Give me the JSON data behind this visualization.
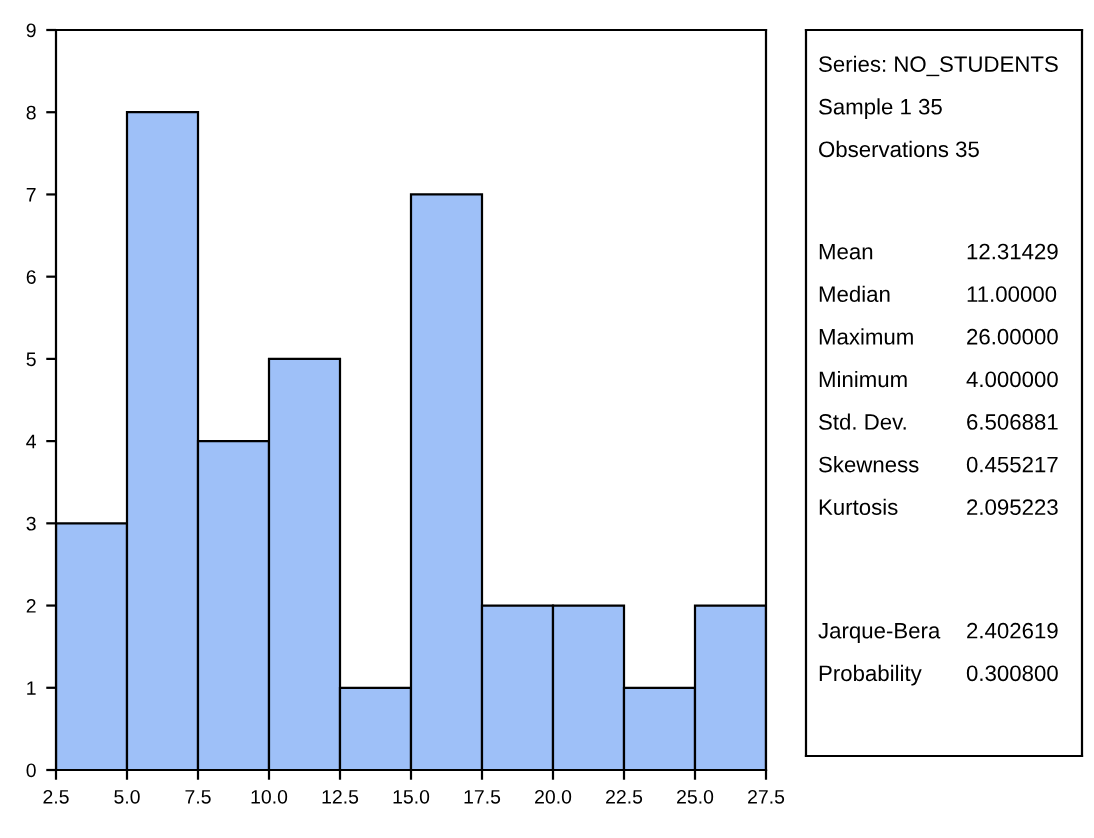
{
  "chart_data": [
    {
      "type": "histogram",
      "bins": [
        2.5,
        5.0,
        7.5,
        10.0,
        12.5,
        15.0,
        17.5,
        20.0,
        22.5,
        25.0,
        27.5
      ],
      "values": [
        3,
        8,
        4,
        5,
        1,
        7,
        2,
        2,
        1,
        2
      ],
      "color": "#9ec0f8",
      "xlim": [
        2.5,
        27.5
      ],
      "xticks": [
        2.5,
        {
          "value": 5.0,
          "label": "5.0"
        },
        7.5,
        {
          "value": 10.0,
          "label": "10.0"
        },
        12.5,
        {
          "value": 15.0,
          "label": "15.0"
        },
        17.5,
        {
          "value": 20.0,
          "label": "20.0"
        },
        22.5,
        {
          "value": 25.0,
          "label": "25.0"
        },
        27.5
      ],
      "ylim": [
        0,
        9
      ],
      "yticks": [
        0,
        1,
        2,
        3,
        4,
        5,
        6,
        7,
        8,
        9
      ],
      "grid": false
    },
    {
      "type": "other",
      "annotations": [
        "Series: NO_STUDENTS",
        "Sample 1 35",
        "Observations 35",
        "Mean",
        "12.31429",
        "Median",
        "11.00000",
        "Maximum",
        "26.00000",
        "Minimum",
        "4.000000",
        "Std. Dev.",
        "6.506881",
        "Skewness",
        "0.455217",
        "Kurtosis",
        "2.095223",
        "Jarque-Bera",
        "2.402619",
        "Probability",
        "0.300800"
      ]
    }
  ]
}
